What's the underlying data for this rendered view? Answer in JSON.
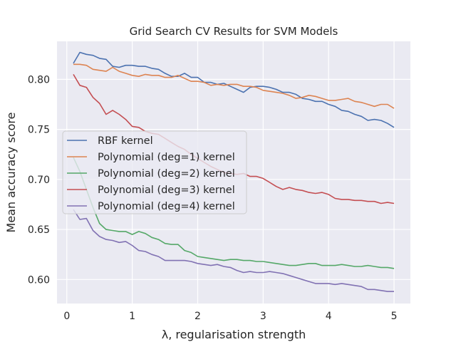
{
  "chart_data": {
    "type": "line",
    "title": "Grid Search CV Results for SVM Models",
    "xlabel": "λ, regularisation strength",
    "ylabel": "Mean accuracy score",
    "xlim": [
      -0.15,
      5.25
    ],
    "ylim": [
      0.576,
      0.838
    ],
    "xticks": [
      0,
      1,
      2,
      3,
      4,
      5
    ],
    "xtick_labels": [
      "0",
      "1",
      "2",
      "3",
      "4",
      "5"
    ],
    "yticks": [
      0.6,
      0.65,
      0.7,
      0.75,
      0.8
    ],
    "ytick_labels": [
      "0.60",
      "0.65",
      "0.70",
      "0.75",
      "0.80"
    ],
    "grid": true,
    "legend_position": "center-left",
    "x": [
      0.1,
      0.2,
      0.3,
      0.4,
      0.5,
      0.6,
      0.7,
      0.8,
      0.9,
      1.0,
      1.1,
      1.2,
      1.3,
      1.4,
      1.5,
      1.6,
      1.7,
      1.8,
      1.9,
      2.0,
      2.1,
      2.2,
      2.3,
      2.4,
      2.5,
      2.6,
      2.7,
      2.8,
      2.9,
      3.0,
      3.1,
      3.2,
      3.3,
      3.4,
      3.5,
      3.6,
      3.7,
      3.8,
      3.9,
      4.0,
      4.1,
      4.2,
      4.3,
      4.4,
      4.5,
      4.6,
      4.7,
      4.8,
      4.9,
      5.0
    ],
    "series": [
      {
        "name": "RBF kernel",
        "color": "#4c72b0",
        "values": [
          0.816,
          0.827,
          0.825,
          0.824,
          0.821,
          0.82,
          0.813,
          0.812,
          0.814,
          0.814,
          0.813,
          0.813,
          0.811,
          0.81,
          0.806,
          0.803,
          0.803,
          0.806,
          0.802,
          0.802,
          0.797,
          0.797,
          0.795,
          0.796,
          0.793,
          0.79,
          0.787,
          0.792,
          0.793,
          0.793,
          0.792,
          0.79,
          0.787,
          0.787,
          0.785,
          0.781,
          0.78,
          0.778,
          0.778,
          0.775,
          0.773,
          0.769,
          0.768,
          0.765,
          0.763,
          0.759,
          0.76,
          0.759,
          0.756,
          0.752
        ]
      },
      {
        "name": "Polynomial (deg=1) kernel",
        "color": "#dd8452",
        "values": [
          0.815,
          0.815,
          0.814,
          0.81,
          0.809,
          0.808,
          0.812,
          0.808,
          0.806,
          0.804,
          0.803,
          0.805,
          0.804,
          0.804,
          0.802,
          0.802,
          0.804,
          0.801,
          0.798,
          0.798,
          0.797,
          0.794,
          0.795,
          0.794,
          0.795,
          0.795,
          0.793,
          0.793,
          0.792,
          0.789,
          0.788,
          0.787,
          0.786,
          0.784,
          0.781,
          0.782,
          0.784,
          0.783,
          0.781,
          0.779,
          0.779,
          0.78,
          0.781,
          0.778,
          0.777,
          0.775,
          0.773,
          0.775,
          0.775,
          0.771
        ]
      },
      {
        "name": "Polynomial (deg=2) kernel",
        "color": "#55a868",
        "values": [
          0.722,
          0.708,
          0.69,
          0.672,
          0.656,
          0.65,
          0.649,
          0.648,
          0.648,
          0.645,
          0.648,
          0.646,
          0.642,
          0.64,
          0.636,
          0.635,
          0.635,
          0.629,
          0.627,
          0.623,
          0.622,
          0.621,
          0.62,
          0.619,
          0.62,
          0.62,
          0.619,
          0.619,
          0.618,
          0.618,
          0.617,
          0.616,
          0.615,
          0.614,
          0.614,
          0.615,
          0.616,
          0.616,
          0.614,
          0.614,
          0.614,
          0.615,
          0.614,
          0.613,
          0.613,
          0.614,
          0.613,
          0.612,
          0.612,
          0.611
        ]
      },
      {
        "name": "Polynomial (deg=3) kernel",
        "color": "#c44e52",
        "values": [
          0.805,
          0.794,
          0.792,
          0.782,
          0.776,
          0.765,
          0.769,
          0.765,
          0.76,
          0.753,
          0.752,
          0.748,
          0.746,
          0.745,
          0.741,
          0.737,
          0.733,
          0.73,
          0.725,
          0.721,
          0.717,
          0.713,
          0.71,
          0.707,
          0.706,
          0.705,
          0.706,
          0.703,
          0.703,
          0.701,
          0.697,
          0.693,
          0.69,
          0.692,
          0.69,
          0.689,
          0.687,
          0.686,
          0.687,
          0.685,
          0.681,
          0.68,
          0.68,
          0.679,
          0.679,
          0.678,
          0.678,
          0.676,
          0.677,
          0.676
        ]
      },
      {
        "name": "Polynomial (deg=4) kernel",
        "color": "#8172b3",
        "values": [
          0.67,
          0.66,
          0.661,
          0.649,
          0.643,
          0.64,
          0.639,
          0.637,
          0.638,
          0.634,
          0.629,
          0.628,
          0.625,
          0.623,
          0.619,
          0.619,
          0.619,
          0.619,
          0.618,
          0.616,
          0.615,
          0.614,
          0.615,
          0.613,
          0.612,
          0.609,
          0.607,
          0.608,
          0.607,
          0.607,
          0.608,
          0.607,
          0.606,
          0.604,
          0.602,
          0.6,
          0.598,
          0.596,
          0.596,
          0.596,
          0.595,
          0.596,
          0.595,
          0.594,
          0.593,
          0.59,
          0.59,
          0.589,
          0.588,
          0.588
        ]
      }
    ]
  }
}
